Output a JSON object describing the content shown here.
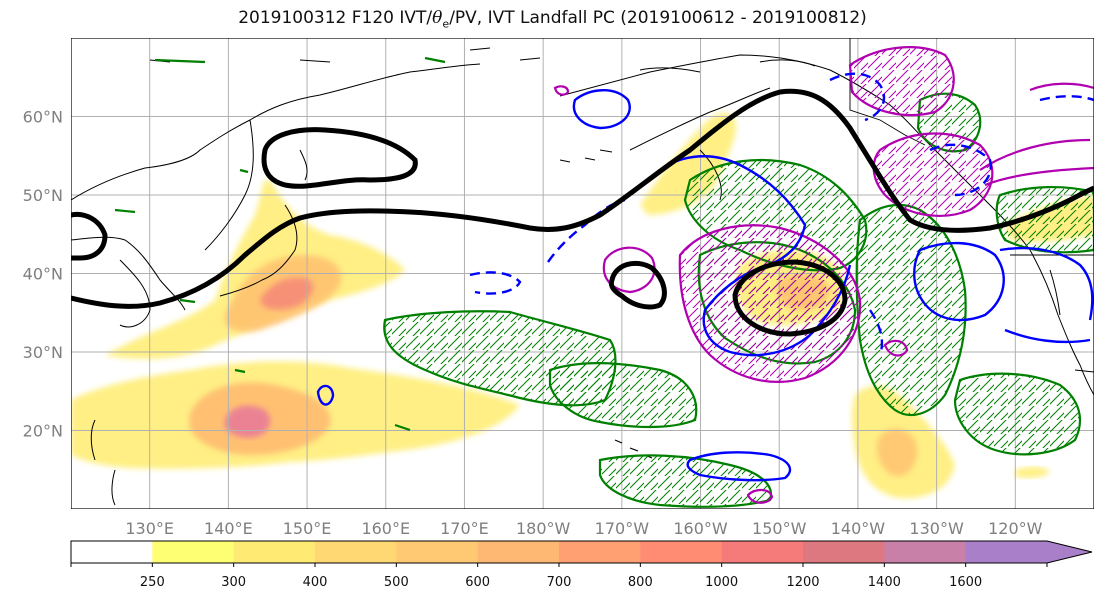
{
  "title": {
    "prefix": "2019100312 F120 IVT/",
    "theta_symbol": "θ",
    "theta_sub": "e",
    "suffix": "/PV, IVT Landfall PC (2019100612 - 2019100812)"
  },
  "map": {
    "lon_range_deg_east": [
      120,
      250
    ],
    "lat_range": [
      10,
      70
    ],
    "latitude_labels": [
      "20°N",
      "30°N",
      "40°N",
      "50°N",
      "60°N"
    ],
    "latitude_values": [
      20,
      30,
      40,
      50,
      60
    ],
    "longitude_labels": [
      "130°E",
      "140°E",
      "150°E",
      "160°E",
      "170°E",
      "180°W",
      "170°W",
      "160°W",
      "150°W",
      "140°W",
      "130°W",
      "120°W"
    ],
    "longitude_values_deg_east": [
      130,
      140,
      150,
      160,
      170,
      180,
      190,
      200,
      210,
      220,
      230,
      240
    ],
    "gridlines": true,
    "colors": {
      "coastline": "#000000",
      "pv_contour": "#000000",
      "theta_e_contour": "#008000",
      "pc_positive_contour": "#0000ff",
      "pc_other_contour": "#b000b0",
      "gridline": "#b0b0b0"
    }
  },
  "colorbar": {
    "tick_labels": [
      "250",
      "300",
      "400",
      "500",
      "600",
      "700",
      "800",
      "1000",
      "1200",
      "1400",
      "1600"
    ],
    "fill_colors": [
      "#ffff73",
      "#ffea73",
      "#ffd873",
      "#ffc973",
      "#ffb873",
      "#ffa073",
      "#ff8c73",
      "#f57b7b",
      "#de7880",
      "#c87fa8",
      "#a87fc8"
    ],
    "under_color": "#ffffff",
    "extend": "max"
  }
}
